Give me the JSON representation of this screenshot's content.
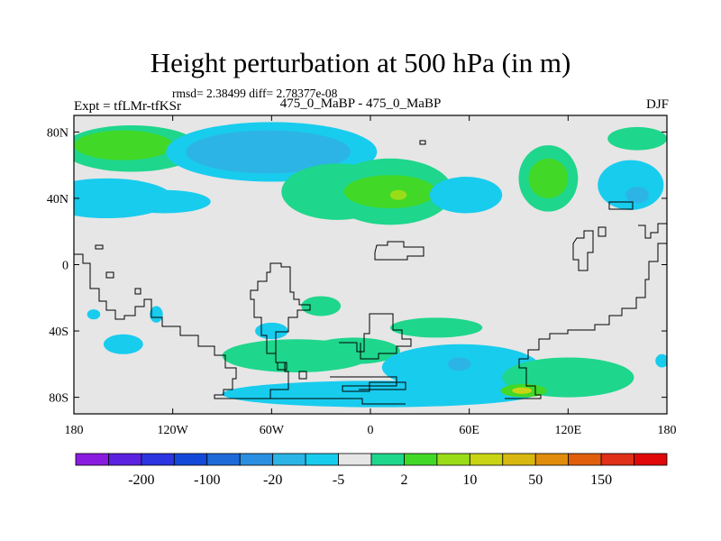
{
  "chart_data": {
    "type": "heatmap",
    "title": "Height perturbation at 500 hPa (in m)",
    "stats_text": "rmsd= 2.38499 diff= 2.78377e-08",
    "left_label": "Expt = tfLMr-tfKSr",
    "center_label": "475_0_MaBP - 475_0_MaBP",
    "right_label": "DJF",
    "lon_range": [
      -180,
      180
    ],
    "lat_range": [
      -90,
      90
    ],
    "x_ticks": [
      {
        "value": -180,
        "label": "180"
      },
      {
        "value": -120,
        "label": "120W"
      },
      {
        "value": -60,
        "label": "60W"
      },
      {
        "value": 0,
        "label": "0"
      },
      {
        "value": 60,
        "label": "60E"
      },
      {
        "value": 120,
        "label": "120E"
      },
      {
        "value": 180,
        "label": "180"
      }
    ],
    "y_ticks": [
      {
        "value": 80,
        "label": "80N"
      },
      {
        "value": 40,
        "label": "40N"
      },
      {
        "value": 0,
        "label": "0"
      },
      {
        "value": -40,
        "label": "40S"
      },
      {
        "value": -80,
        "label": "80S"
      }
    ],
    "colorbar": {
      "colors": [
        "#8a1ce0",
        "#5b22e0",
        "#2c35e0",
        "#1448d8",
        "#1e6ad8",
        "#2a8fe0",
        "#2cb4e6",
        "#18ccee",
        "#e6e6e6",
        "#1ed68c",
        "#42d828",
        "#9adc18",
        "#c8d414",
        "#d8b810",
        "#e08c0c",
        "#e05e0c",
        "#e03018",
        "#e00808"
      ],
      "labels": [
        {
          "after_bin": 1,
          "text": "-200"
        },
        {
          "after_bin": 3,
          "text": "-100"
        },
        {
          "after_bin": 5,
          "text": "-20"
        },
        {
          "after_bin": 7,
          "text": "-5"
        },
        {
          "after_bin": 9,
          "text": "2"
        },
        {
          "after_bin": 11,
          "text": "10"
        },
        {
          "after_bin": 13,
          "text": "50"
        },
        {
          "after_bin": 15,
          "text": "150"
        }
      ]
    },
    "anomaly_blobs": [
      {
        "lon": -145,
        "lat": 70,
        "rlon": 42,
        "rlat": 14,
        "level": 1
      },
      {
        "lon": -150,
        "lat": 72,
        "rlon": 30,
        "rlat": 9,
        "level": 2
      },
      {
        "lon": -160,
        "lat": 40,
        "rlon": 40,
        "rlat": 12,
        "level": -1
      },
      {
        "lon": -125,
        "lat": 38,
        "rlon": 28,
        "rlat": 7,
        "level": -1
      },
      {
        "lon": -60,
        "lat": 68,
        "rlon": 64,
        "rlat": 18,
        "level": -1
      },
      {
        "lon": -62,
        "lat": 68,
        "rlon": 50,
        "rlat": 13,
        "level": -2
      },
      {
        "lon": -20,
        "lat": 44,
        "rlon": 34,
        "rlat": 17,
        "level": 1
      },
      {
        "lon": 12,
        "lat": 44,
        "rlon": 38,
        "rlat": 20,
        "level": 1
      },
      {
        "lon": 12,
        "lat": 44,
        "rlon": 28,
        "rlat": 10,
        "level": 2
      },
      {
        "lon": 17,
        "lat": 42,
        "rlon": 5,
        "rlat": 3,
        "level": 3
      },
      {
        "lon": 58,
        "lat": 42,
        "rlon": 22,
        "rlat": 11,
        "level": -1
      },
      {
        "lon": 108,
        "lat": 52,
        "rlon": 18,
        "rlat": 20,
        "level": 1
      },
      {
        "lon": 108,
        "lat": 52,
        "rlon": 12,
        "rlat": 12,
        "level": 2
      },
      {
        "lon": 158,
        "lat": 48,
        "rlon": 20,
        "rlat": 15,
        "level": -1
      },
      {
        "lon": 162,
        "lat": 42,
        "rlon": 7,
        "rlat": 5,
        "level": -2
      },
      {
        "lon": 162,
        "lat": 76,
        "rlon": 18,
        "rlat": 7,
        "level": 1
      },
      {
        "lon": -130,
        "lat": -30,
        "rlon": 4,
        "rlat": 5,
        "level": -1
      },
      {
        "lon": -168,
        "lat": -30,
        "rlon": 4,
        "rlat": 3,
        "level": -1
      },
      {
        "lon": -150,
        "lat": -48,
        "rlon": 12,
        "rlat": 6,
        "level": -1
      },
      {
        "lon": -30,
        "lat": -25,
        "rlon": 12,
        "rlat": 6,
        "level": 1
      },
      {
        "lon": -60,
        "lat": -40,
        "rlon": 10,
        "rlat": 5,
        "level": -1
      },
      {
        "lon": -45,
        "lat": -55,
        "rlon": 45,
        "rlat": 10,
        "level": 1
      },
      {
        "lon": -10,
        "lat": -52,
        "rlon": 28,
        "rlat": 8,
        "level": 1
      },
      {
        "lon": 40,
        "lat": -38,
        "rlon": 28,
        "rlat": 6,
        "level": 1
      },
      {
        "lon": 55,
        "lat": -62,
        "rlon": 48,
        "rlat": 14,
        "level": -1
      },
      {
        "lon": 5,
        "lat": -78,
        "rlon": 95,
        "rlat": 8,
        "level": -1
      },
      {
        "lon": 54,
        "lat": -60,
        "rlon": 7,
        "rlat": 4,
        "level": -2
      },
      {
        "lon": 120,
        "lat": -68,
        "rlon": 40,
        "rlat": 12,
        "level": 1
      },
      {
        "lon": 93,
        "lat": -76,
        "rlon": 14,
        "rlat": 4,
        "level": 2
      },
      {
        "lon": 92,
        "lat": -76,
        "rlon": 6,
        "rlat": 2,
        "level": 4
      },
      {
        "lon": 177,
        "lat": -58,
        "rlon": 4,
        "rlat": 4,
        "level": -1
      }
    ]
  }
}
